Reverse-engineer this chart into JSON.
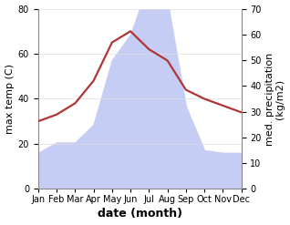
{
  "months": [
    "Jan",
    "Feb",
    "Mar",
    "Apr",
    "May",
    "Jun",
    "Jul",
    "Aug",
    "Sep",
    "Oct",
    "Nov",
    "Dec"
  ],
  "temperature": [
    30,
    33,
    38,
    48,
    65,
    70,
    62,
    57,
    44,
    40,
    37,
    34
  ],
  "precipitation": [
    14,
    18,
    18,
    25,
    50,
    60,
    80,
    73,
    32,
    15,
    14,
    14
  ],
  "temp_color": "#b03535",
  "precip_fill_color": "#c5cdf5",
  "precip_edge_color": "#c5cdf5",
  "temp_ylim": [
    0,
    80
  ],
  "precip_ylim": [
    0,
    70
  ],
  "temp_yticks": [
    0,
    20,
    40,
    60,
    80
  ],
  "precip_yticks": [
    0,
    10,
    20,
    30,
    40,
    50,
    60,
    70
  ],
  "xlabel": "date (month)",
  "ylabel_left": "max temp (C)",
  "ylabel_right": "med. precipitation\n(kg/m2)",
  "xlabel_fontsize": 9,
  "ylabel_fontsize": 8,
  "tick_fontsize": 7,
  "linewidth": 1.6,
  "bg_color": "#ffffff",
  "grid_color": "#dddddd"
}
